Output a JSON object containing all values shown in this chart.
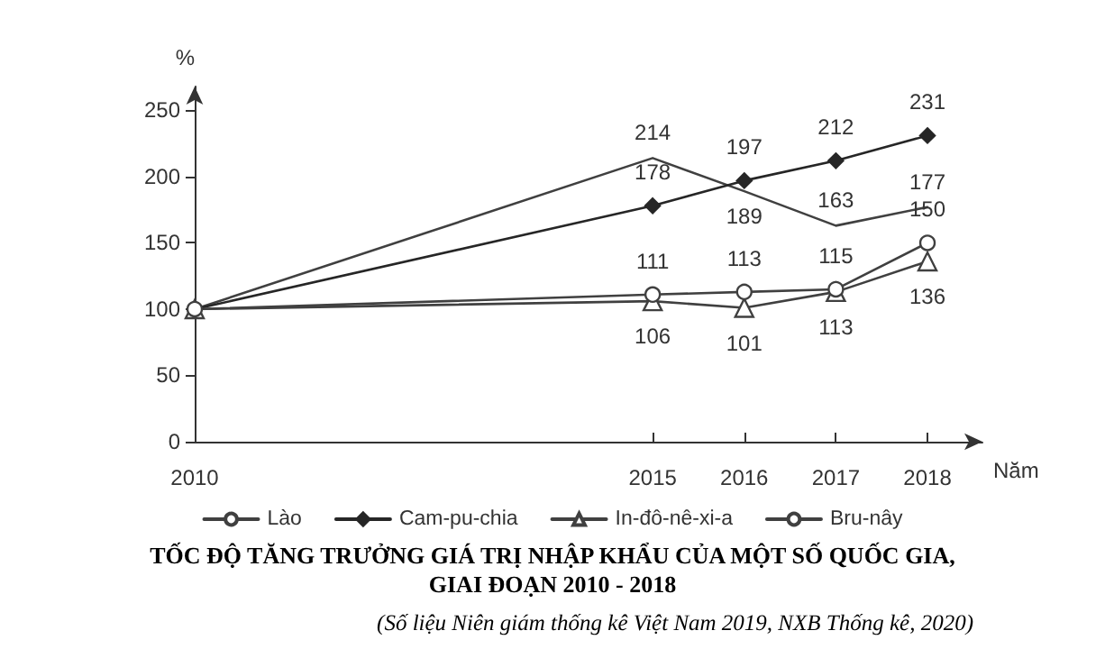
{
  "chart_data": {
    "type": "line",
    "title": "TỐC ĐỘ TĂNG TRƯỞNG GIÁ TRỊ NHẬP KHẨU CỦA MỘT SỐ QUỐC GIA,\nGIAI ĐOẠN 2010 - 2018",
    "annotations": [
      "(Số liệu Niên giám thống kê Việt Nam 2019, NXB Thống kê, 2020)"
    ],
    "xlabel": "Năm",
    "ylabel": "%",
    "x": [
      2010,
      2015,
      2016,
      2017,
      2018
    ],
    "series": [
      {
        "name": "Lào",
        "color": "#404040",
        "marker": "none",
        "values": [
          100,
          214,
          189,
          163,
          177
        ],
        "value_labels": [
          null,
          "214",
          "189",
          "163",
          "177"
        ]
      },
      {
        "name": "Cam-pu-chia",
        "color": "#262626",
        "marker": "diamond",
        "values": [
          100,
          178,
          197,
          212,
          231
        ],
        "value_labels": [
          null,
          "178",
          "197",
          "212",
          "231"
        ]
      },
      {
        "name": "In-đô-nê-xi-a",
        "color": "#404040",
        "marker": "triangle",
        "values": [
          100,
          106,
          101,
          113,
          136
        ],
        "value_labels": [
          null,
          "106",
          "101",
          "113",
          "136"
        ]
      },
      {
        "name": "Bru-nây",
        "color": "#404040",
        "marker": "circle",
        "values": [
          100,
          111,
          113,
          115,
          150
        ],
        "value_labels": [
          null,
          "111",
          "113",
          "115",
          "150"
        ]
      }
    ],
    "xlim": [
      2010,
      2018.6
    ],
    "xticks": [
      2010,
      2015,
      2016,
      2017,
      2018
    ],
    "ylim": [
      0,
      268
    ],
    "yticks": [
      0,
      50,
      100,
      150,
      200,
      250
    ],
    "grid": false,
    "legend": "bottom",
    "line_style": "solid"
  }
}
